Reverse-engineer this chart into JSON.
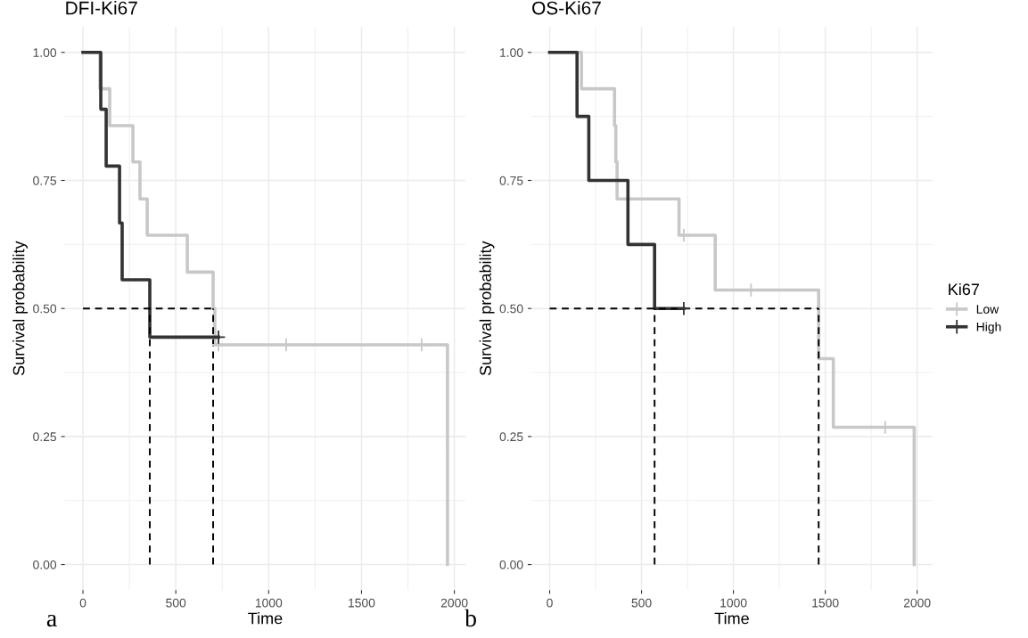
{
  "chart_data": [
    {
      "type": "step",
      "title": "DFI-Ki67",
      "xlabel": "Time",
      "ylabel": "Survival probability",
      "xlim": [
        -98,
        2061
      ],
      "ylim": [
        -0.05,
        1.05
      ],
      "xticks": [
        0,
        500,
        1000,
        1500,
        2000
      ],
      "yticks": [
        {
          "value": 0,
          "label": "0.00"
        },
        {
          "value": 0.25,
          "label": "0.25"
        },
        {
          "value": 0.5,
          "label": "0.50"
        },
        {
          "value": 0.75,
          "label": "0.75"
        },
        {
          "value": 1,
          "label": "1.00"
        }
      ],
      "grid": true,
      "legend": false,
      "annotations": [
        "a"
      ],
      "series": [
        {
          "color": "#c8c8c8",
          "x": [
            0,
            91,
            144,
            269,
            307,
            346,
            562,
            701,
            710,
            1963,
            1963
          ],
          "values": [
            1.0,
            0.929,
            0.857,
            0.786,
            0.714,
            0.643,
            0.571,
            0.5,
            0.429,
            0.429,
            0.0
          ]
        },
        {
          "color": "#333333",
          "x": [
            0,
            96,
            125,
            197,
            211,
            360,
            730
          ],
          "values": [
            1.0,
            0.889,
            0.778,
            0.667,
            0.556,
            0.444,
            0.444
          ]
        },
        {
          "type": "scatter",
          "marker": "cross",
          "color": "#c8c8c8",
          "x": [
            730,
            1094,
            1824
          ],
          "values": [
            0.429,
            0.429,
            0.429
          ]
        },
        {
          "type": "scatter",
          "marker": "cross",
          "color": "#333333",
          "x": [
            730
          ],
          "values": [
            0.444
          ]
        },
        {
          "type": "line",
          "line_style": "dashed",
          "color": "#000000",
          "x": [
            0,
            701
          ],
          "values": [
            0.5,
            0.5
          ]
        },
        {
          "type": "line",
          "line_style": "dashed",
          "color": "#000000",
          "x": [
            360,
            360
          ],
          "values": [
            0.0,
            0.5
          ]
        },
        {
          "type": "line",
          "line_style": "dashed",
          "color": "#000000",
          "x": [
            701,
            701
          ],
          "values": [
            0.0,
            0.5
          ]
        }
      ]
    },
    {
      "type": "step",
      "title": "OS-Ki67",
      "xlabel": "Time",
      "ylabel": "Survival probability",
      "xlim": [
        -99,
        2083
      ],
      "ylim": [
        -0.05,
        1.05
      ],
      "xticks": [
        0,
        500,
        1000,
        1500,
        2000
      ],
      "yticks": [
        {
          "value": 0,
          "label": "0.00"
        },
        {
          "value": 0.25,
          "label": "0.25"
        },
        {
          "value": 0.5,
          "label": "0.50"
        },
        {
          "value": 0.75,
          "label": "0.75"
        },
        {
          "value": 1,
          "label": "1.00"
        }
      ],
      "grid": true,
      "legend": "right",
      "legend_title": "Ki67",
      "annotations": [
        "b"
      ],
      "series": [
        {
          "name": "Low",
          "color": "#c8c8c8",
          "x": [
            0,
            173,
            353,
            360,
            367,
            704,
            901,
            1464,
            1544,
            1984,
            1984
          ],
          "values": [
            1.0,
            0.929,
            0.857,
            0.786,
            0.714,
            0.643,
            0.536,
            0.402,
            0.268,
            0.268,
            0.0
          ]
        },
        {
          "name": "High",
          "color": "#333333",
          "x": [
            0,
            149,
            213,
            426,
            571,
            730
          ],
          "values": [
            1.0,
            0.875,
            0.75,
            0.625,
            0.5,
            0.5
          ]
        },
        {
          "type": "scatter",
          "marker": "cross",
          "color": "#c8c8c8",
          "x": [
            730,
            1096,
            1826
          ],
          "values": [
            0.643,
            0.536,
            0.268
          ]
        },
        {
          "type": "scatter",
          "marker": "cross",
          "color": "#333333",
          "x": [
            730
          ],
          "values": [
            0.5
          ]
        },
        {
          "type": "line",
          "line_style": "dashed",
          "color": "#000000",
          "x": [
            0,
            1464
          ],
          "values": [
            0.5,
            0.5
          ]
        },
        {
          "type": "line",
          "line_style": "dashed",
          "color": "#000000",
          "x": [
            571,
            571
          ],
          "values": [
            0.0,
            0.5
          ]
        },
        {
          "type": "line",
          "line_style": "dashed",
          "color": "#000000",
          "x": [
            1464,
            1464
          ],
          "values": [
            0.0,
            0.5
          ]
        }
      ]
    }
  ]
}
